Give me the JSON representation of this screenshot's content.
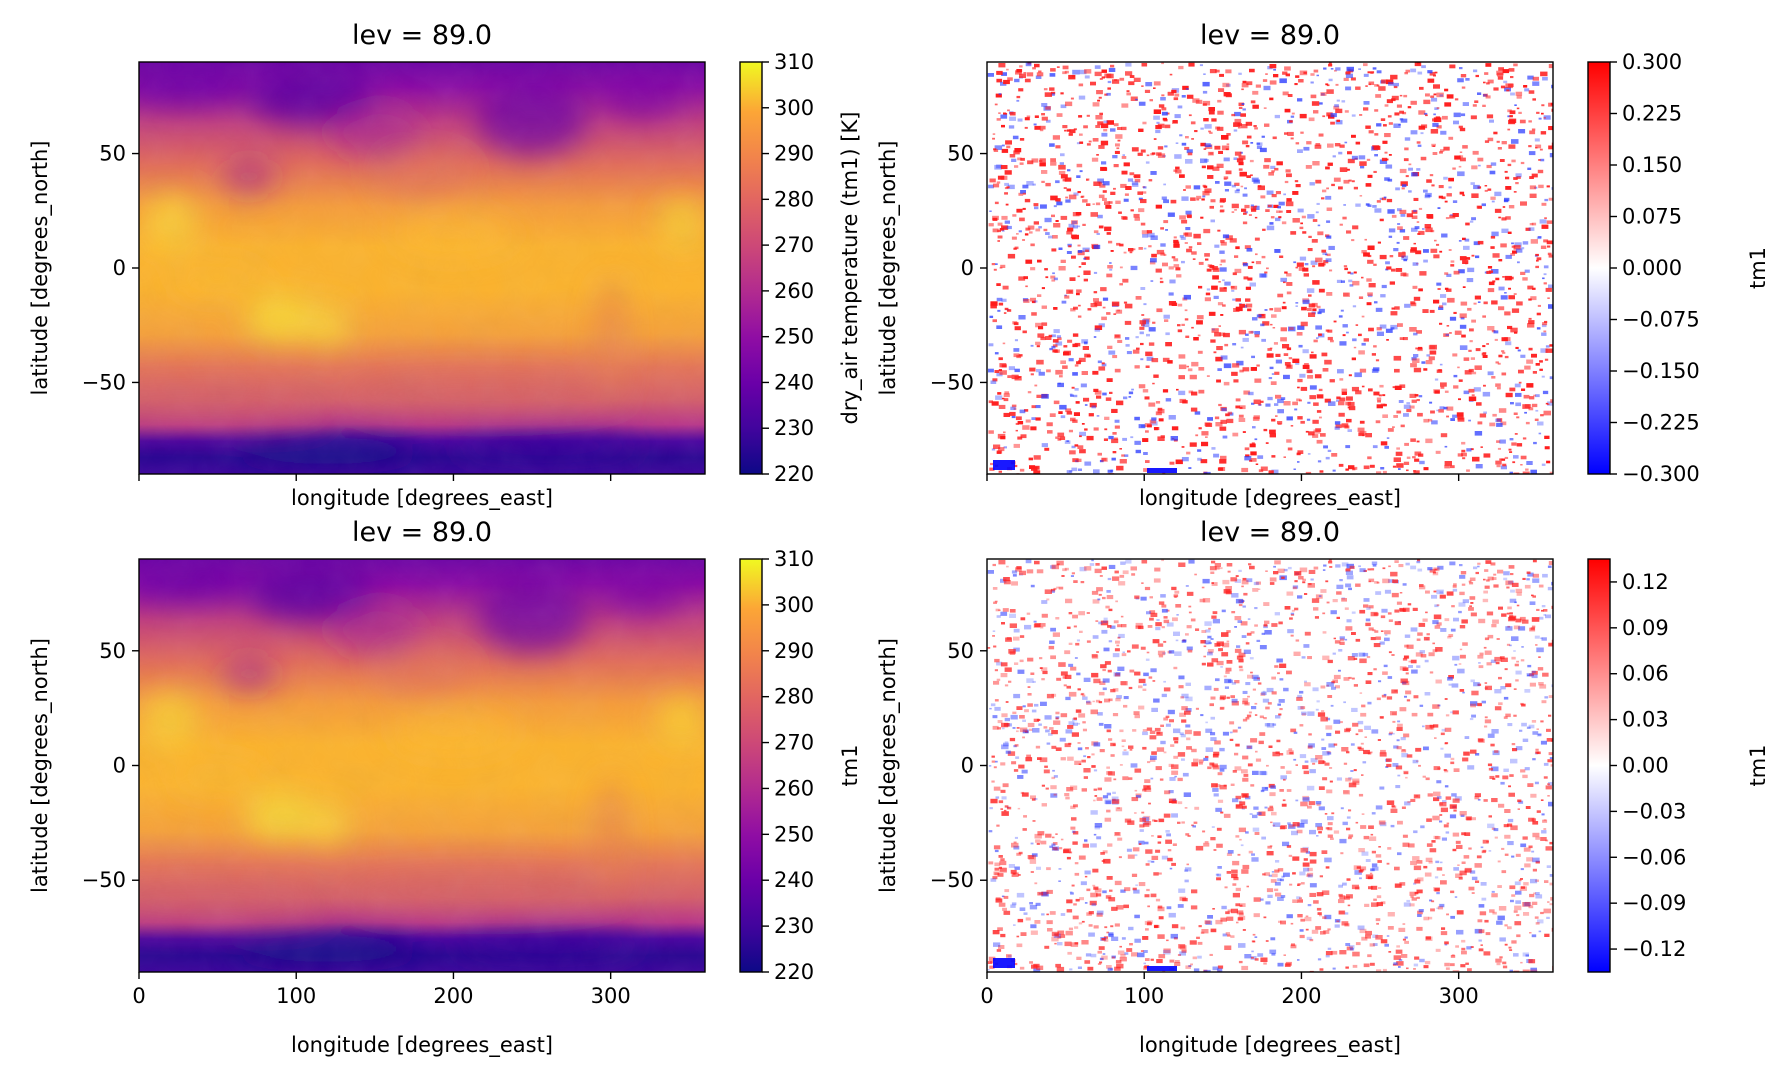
{
  "chart_data": [
    {
      "type": "heatmap",
      "title": "lev = 89.0",
      "xlabel": "longitude [degrees_east]",
      "ylabel": "latitude [degrees_north]",
      "xlim": [
        0,
        360
      ],
      "ylim": [
        -90,
        90
      ],
      "x_ticks": [],
      "y_ticks": [
        "50",
        "0",
        "−50"
      ],
      "colormap": "plasma",
      "colorbar": {
        "label": "dry_air temperature (tm1) [K]",
        "range": [
          220,
          310
        ],
        "ticks": [
          "220",
          "230",
          "240",
          "250",
          "260",
          "270",
          "280",
          "290",
          "300",
          "310"
        ]
      }
    },
    {
      "type": "heatmap",
      "title": "lev = 89.0",
      "xlabel": "longitude [degrees_east]",
      "ylabel": "latitude [degrees_north]",
      "xlim": [
        0,
        360
      ],
      "ylim": [
        -90,
        90
      ],
      "x_ticks": [],
      "y_ticks": [
        "50",
        "0",
        "−50"
      ],
      "colormap": "bwr",
      "colorbar": {
        "label": "tm1",
        "range": [
          -0.3,
          0.3
        ],
        "ticks": [
          "−0.300",
          "−0.225",
          "−0.150",
          "−0.075",
          "0.000",
          "0.075",
          "0.150",
          "0.225",
          "0.300"
        ]
      }
    },
    {
      "type": "heatmap",
      "title": "lev = 89.0",
      "xlabel": "longitude [degrees_east]",
      "ylabel": "latitude [degrees_north]",
      "xlim": [
        0,
        360
      ],
      "ylim": [
        -90,
        90
      ],
      "x_ticks": [
        "0",
        "100",
        "200",
        "300"
      ],
      "y_ticks": [
        "50",
        "0",
        "−50"
      ],
      "colormap": "plasma",
      "colorbar": {
        "label": "tm1",
        "range": [
          220,
          310
        ],
        "ticks": [
          "220",
          "230",
          "240",
          "250",
          "260",
          "270",
          "280",
          "290",
          "300",
          "310"
        ]
      }
    },
    {
      "type": "heatmap",
      "title": "lev = 89.0",
      "xlabel": "longitude [degrees_east]",
      "ylabel": "latitude [degrees_north]",
      "xlim": [
        0,
        360
      ],
      "ylim": [
        -90,
        90
      ],
      "x_ticks": [
        "0",
        "100",
        "200",
        "300"
      ],
      "y_ticks": [
        "50",
        "0",
        "−50"
      ],
      "colormap": "bwr",
      "colorbar": {
        "label": "tm1",
        "range": [
          -0.135,
          0.135
        ],
        "ticks": [
          "−0.12",
          "−0.09",
          "−0.06",
          "−0.03",
          "0.00",
          "0.03",
          "0.06",
          "0.09",
          "0.12"
        ]
      }
    }
  ]
}
